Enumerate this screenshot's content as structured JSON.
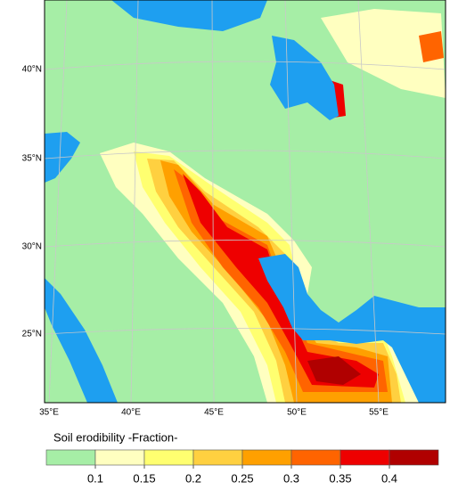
{
  "map": {
    "lon_labels": [
      "35°E",
      "40°E",
      "45°E",
      "50°E",
      "55°E"
    ],
    "lat_labels": [
      "40°N",
      "35°N",
      "30°N",
      "25°N"
    ]
  },
  "colorbar": {
    "title": "Soil erodibility -Fraction-",
    "colors": [
      "#a6eea6",
      "#ffffc0",
      "#ffff70",
      "#ffd040",
      "#ffa000",
      "#ff6400",
      "#ee0000",
      "#b00000"
    ],
    "ticks": [
      0.1,
      0.15,
      0.2,
      0.25,
      0.3,
      0.35,
      0.4
    ]
  }
}
